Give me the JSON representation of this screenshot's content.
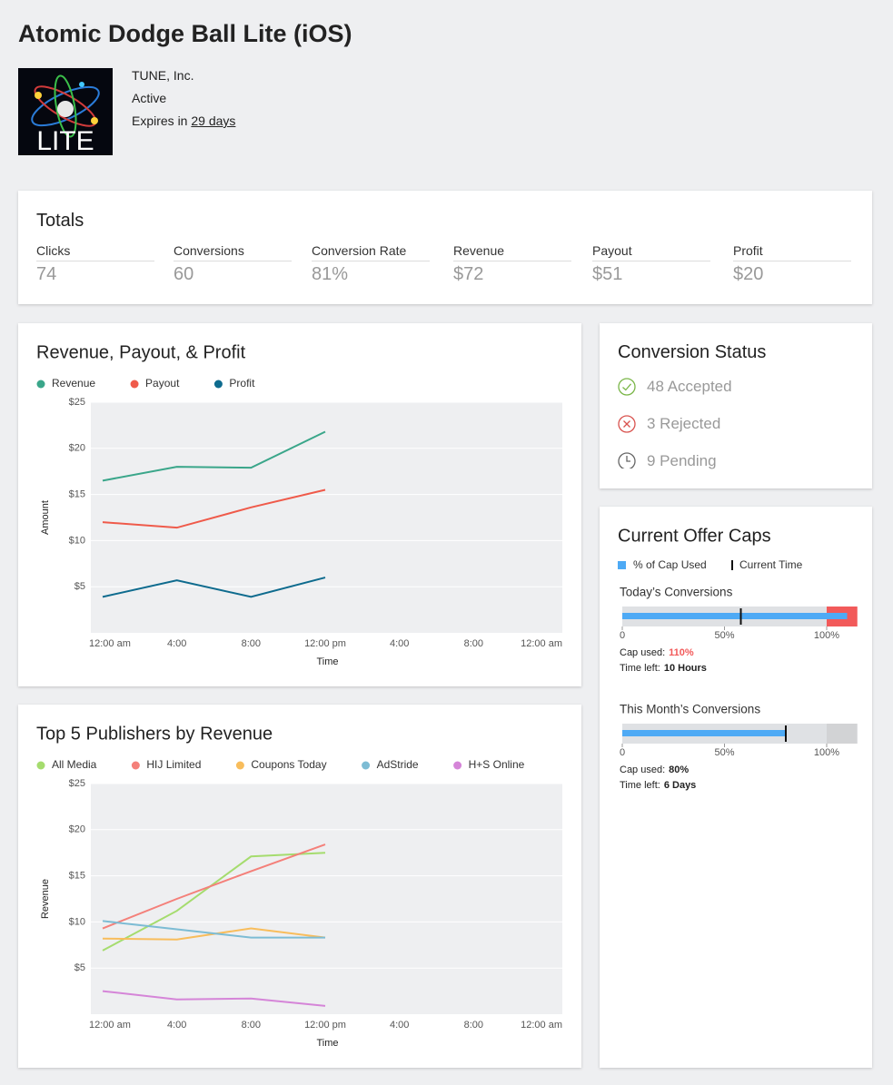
{
  "header": {
    "title": "Atomic Dodge Ball Lite (iOS)",
    "icon_label": "LITE",
    "company": "TUNE, Inc.",
    "status": "Active",
    "expires_prefix": "Expires in",
    "expires_link": "29 days"
  },
  "totals": {
    "title": "Totals",
    "items": [
      {
        "label": "Clicks",
        "value": "74"
      },
      {
        "label": "Conversions",
        "value": "60"
      },
      {
        "label": "Conversion Rate",
        "value": "81%"
      },
      {
        "label": "Revenue",
        "value": "$72"
      },
      {
        "label": "Payout",
        "value": "$51"
      },
      {
        "label": "Profit",
        "value": "$20"
      }
    ]
  },
  "chart_data": [
    {
      "type": "line",
      "title": "Revenue, Payout, & Profit",
      "x_label": "Time",
      "y_label": "Amount",
      "categories": [
        "12:00 am",
        "4:00",
        "8:00",
        "12:00 pm",
        "4:00",
        "8:00",
        "12:00 am"
      ],
      "series": [
        {
          "name": "Revenue",
          "color": "#3aa68a",
          "values": [
            16.5,
            18.0,
            17.9,
            21.8,
            null,
            null,
            null
          ]
        },
        {
          "name": "Payout",
          "color": "#ef5a4a",
          "values": [
            12.0,
            11.4,
            13.6,
            15.5,
            null,
            null,
            null
          ]
        },
        {
          "name": "Profit",
          "color": "#0e6b8e",
          "values": [
            3.9,
            5.7,
            3.9,
            6.0,
            null,
            null,
            null
          ]
        }
      ],
      "ylim": [
        0,
        25
      ],
      "yticks": [
        {
          "value": 5,
          "label": "$5"
        },
        {
          "value": 10,
          "label": "$10"
        },
        {
          "value": 15,
          "label": "$15"
        },
        {
          "value": 20,
          "label": "$20"
        },
        {
          "value": 25,
          "label": "$25"
        }
      ],
      "grid": true
    },
    {
      "type": "line",
      "title": "Top 5 Publishers by Revenue",
      "x_label": "Time",
      "y_label": "Revenue",
      "categories": [
        "12:00 am",
        "4:00",
        "8:00",
        "12:00 pm",
        "4:00",
        "8:00",
        "12:00 am"
      ],
      "series": [
        {
          "name": "All Media",
          "color": "#a5dc6e",
          "values": [
            6.9,
            11.2,
            17.1,
            17.5,
            null,
            null,
            null
          ]
        },
        {
          "name": "HIJ Limited",
          "color": "#f4807a",
          "values": [
            9.3,
            12.5,
            15.5,
            18.4,
            null,
            null,
            null
          ]
        },
        {
          "name": "Coupons Today",
          "color": "#f8bd5c",
          "values": [
            8.2,
            8.1,
            9.3,
            8.3,
            null,
            null,
            null
          ]
        },
        {
          "name": "AdStride",
          "color": "#7dbcd4",
          "values": [
            10.1,
            9.2,
            8.3,
            8.3,
            null,
            null,
            null
          ]
        },
        {
          "name": "H+S Online",
          "color": "#d585d8",
          "values": [
            2.5,
            1.6,
            1.7,
            0.9,
            null,
            null,
            null
          ]
        }
      ],
      "ylim": [
        0,
        25
      ],
      "yticks": [
        {
          "value": 5,
          "label": "$5"
        },
        {
          "value": 10,
          "label": "$10"
        },
        {
          "value": 15,
          "label": "$15"
        },
        {
          "value": 20,
          "label": "$20"
        },
        {
          "value": 25,
          "label": "$25"
        }
      ],
      "grid": true
    }
  ],
  "conversion_status": {
    "title": "Conversion Status",
    "items": [
      "48 Accepted",
      "3 Rejected",
      "9 Pending"
    ]
  },
  "offer_caps": {
    "title": "Current Offer Caps",
    "legend_used": "% of Cap Used",
    "legend_time": "Current Time",
    "cap_used_label": "Cap used:",
    "time_left_label": "Time left:",
    "xlim": [
      0,
      115
    ],
    "xticks": [
      {
        "value": 0,
        "label": "0"
      },
      {
        "value": 50,
        "label": "50%"
      },
      {
        "value": 100,
        "label": "100%"
      }
    ],
    "used_color": "#4eaaf5",
    "over_color": "#f25a5a",
    "caps": [
      {
        "title": "Today’s Conversions",
        "used": 110,
        "used_label": "110%",
        "current_time": 58,
        "time_left": "10 Hours"
      },
      {
        "title": "This Month’s Conversions",
        "used": 80,
        "used_label": "80%",
        "current_time": 80,
        "time_left": "6 Days"
      }
    ]
  }
}
